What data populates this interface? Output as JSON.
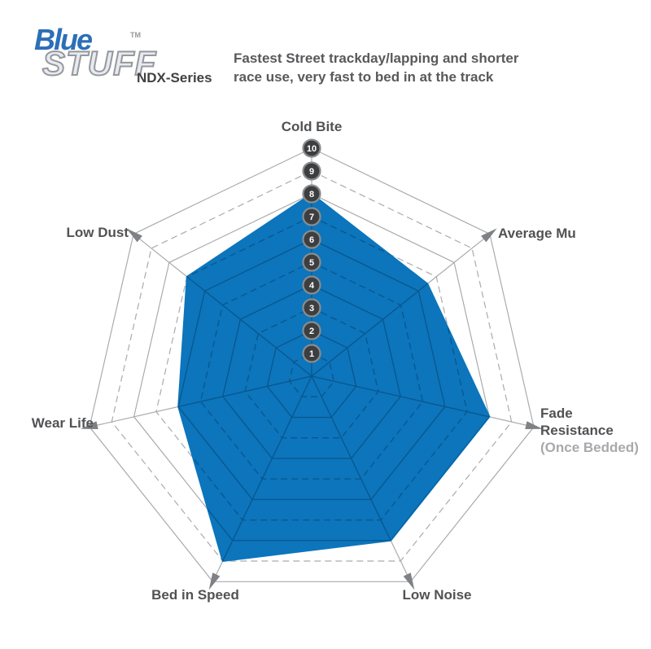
{
  "logo": {
    "word_top": "Blue",
    "trademark": "TM",
    "word_bottom": "STUFF",
    "series": "NDX-Series",
    "blue_color": "#2C6FB7"
  },
  "header": {
    "line1": "Fastest Street trackday/lapping and shorter",
    "line2": "race use, very fast to bed in at the track"
  },
  "chart_data": {
    "type": "radar",
    "title": "BlueStuff NDX-Series brake pad performance",
    "categories": [
      "Cold Bite",
      "Average Mu",
      "Fade Resistance",
      "Low Noise",
      "Bed in Speed",
      "Wear Life",
      "Low Dust"
    ],
    "series": [
      {
        "name": "BlueStuff NDX",
        "values": [
          8,
          6.5,
          8,
          8,
          9,
          6,
          7
        ]
      }
    ],
    "scale": {
      "min": 0,
      "max": 10,
      "ticks": [
        1,
        2,
        3,
        4,
        5,
        6,
        7,
        8,
        9,
        10
      ]
    },
    "grid": {
      "shape": "heptagon",
      "rings": 10,
      "even_rings": "solid",
      "odd_rings": "dashed",
      "spokes": 7
    },
    "legend_position": "none",
    "colors": {
      "polygon_fill": "#0C75BC",
      "grid_light": "#A9ABAE",
      "grid_dark": "#0A568C",
      "arrow": "#808184",
      "badge_fill": "#3D3E40",
      "badge_stroke": "#8A8C8E",
      "badge_text": "#FFFFFF"
    }
  },
  "axis_labels": {
    "cold_bite": "Cold Bite",
    "average_mu": "Average Mu",
    "fade_line1": "Fade",
    "fade_line2": "Resistance",
    "fade_line3": "(Once Bedded)",
    "low_noise": "Low Noise",
    "bed_in_speed": "Bed in Speed",
    "wear_life": "Wear Life",
    "low_dust": "Low Dust"
  }
}
